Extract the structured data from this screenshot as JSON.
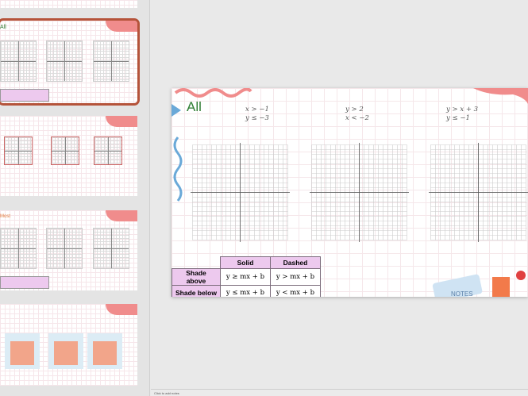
{
  "slide": {
    "title": "All",
    "problems": [
      {
        "line1": "x > −1",
        "line2": "y ≤ −3"
      },
      {
        "line1": "y > 2",
        "line2": "x < −2"
      },
      {
        "line1": "y > x + 3",
        "line2": "y ≤ −1"
      }
    ],
    "table": {
      "headers": [
        "Solid",
        "Dashed"
      ],
      "rows": [
        {
          "label": "Shade above",
          "solid": "y ≥ mx + b",
          "dashed": "y > mx + b"
        },
        {
          "label": "Shade below",
          "solid": "y ≤ mx + b",
          "dashed": "y < mx + b"
        }
      ]
    },
    "decor_text": "NOTES"
  },
  "thumbnails": [
    {
      "index": 1,
      "selected": false
    },
    {
      "index": 2,
      "selected": true,
      "title": "All"
    },
    {
      "index": 3,
      "selected": false
    },
    {
      "index": 4,
      "selected": false,
      "title": "Most"
    },
    {
      "index": 5,
      "selected": false
    }
  ],
  "notes": {
    "placeholder": "Click to add notes"
  },
  "colors": {
    "accent": "#b5533a",
    "header": "#edc9ee",
    "title": "#2e7d32",
    "blob": "#f08c8c"
  }
}
